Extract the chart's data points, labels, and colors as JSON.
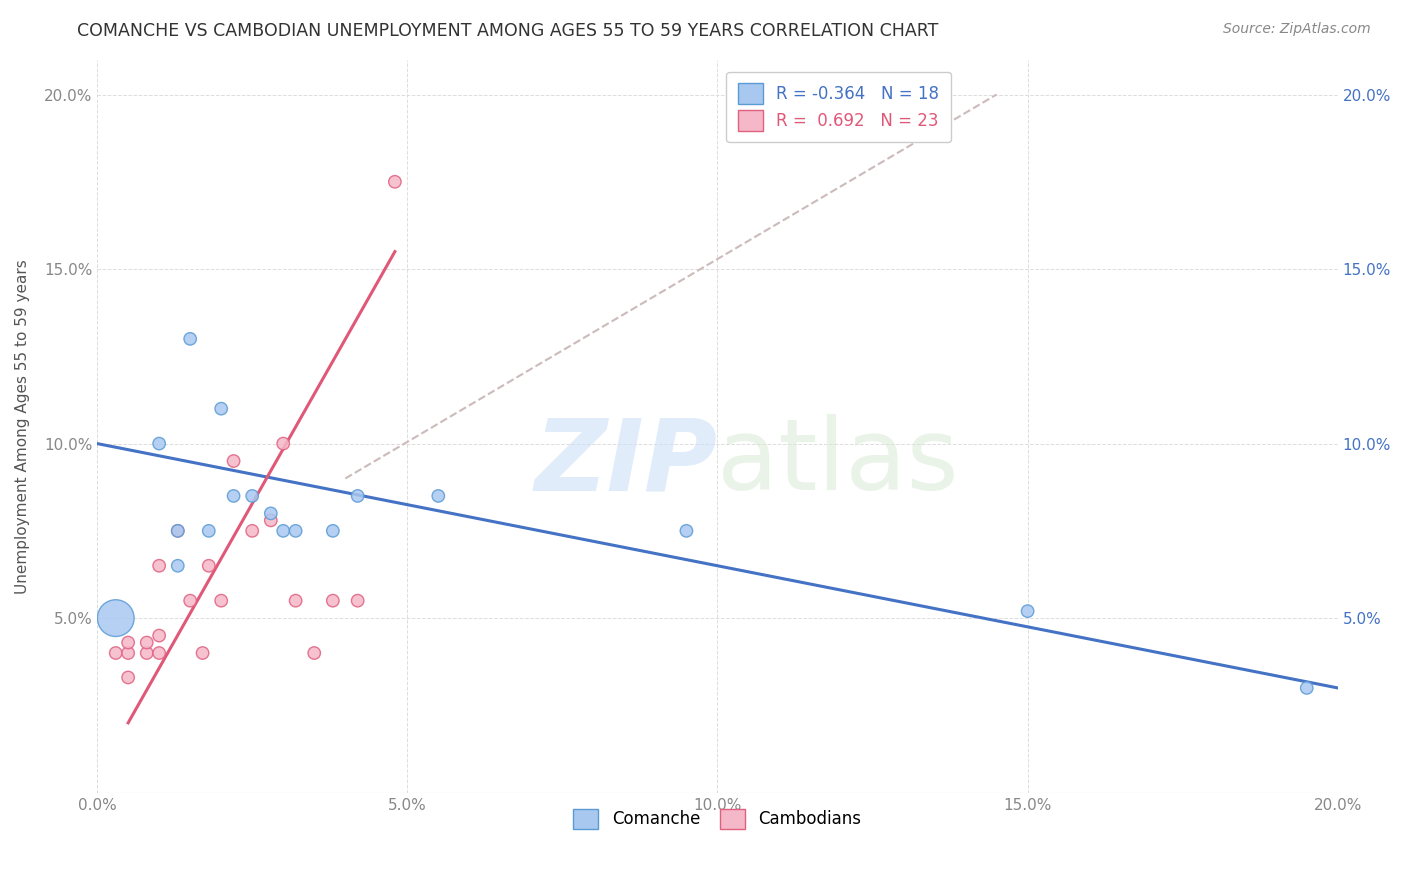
{
  "title": "COMANCHE VS CAMBODIAN UNEMPLOYMENT AMONG AGES 55 TO 59 YEARS CORRELATION CHART",
  "source": "Source: ZipAtlas.com",
  "ylabel": "Unemployment Among Ages 55 to 59 years",
  "xlim": [
    0.0,
    0.2
  ],
  "ylim": [
    0.0,
    0.21
  ],
  "xticks": [
    0.0,
    0.05,
    0.1,
    0.15,
    0.2
  ],
  "yticks": [
    0.05,
    0.1,
    0.15,
    0.2
  ],
  "xticklabels": [
    "0.0%",
    "5.0%",
    "10.0%",
    "15.0%",
    "20.0%"
  ],
  "yticklabels": [
    "5.0%",
    "10.0%",
    "15.0%",
    "20.0%"
  ],
  "watermark_zip": "ZIP",
  "watermark_atlas": "atlas",
  "comanche_color": "#a8c8f0",
  "cambodian_color": "#f5b8c8",
  "comanche_edge": "#5b9bd5",
  "cambodian_edge": "#e06080",
  "blue_line_color": "#4472c4",
  "pink_line_color": "#e05878",
  "dashed_line_color": "#ccbbbb",
  "tick_color": "#888888",
  "right_tick_color": "#4472c4",
  "legend_R_comanche": "R = -0.364",
  "legend_N_comanche": "N = 18",
  "legend_R_cambodian": "R =  0.692",
  "legend_N_cambodian": "N = 23",
  "comanche_x": [
    0.003,
    0.01,
    0.013,
    0.013,
    0.015,
    0.018,
    0.02,
    0.022,
    0.025,
    0.028,
    0.03,
    0.032,
    0.038,
    0.042,
    0.055,
    0.095,
    0.15,
    0.195
  ],
  "comanche_y": [
    0.05,
    0.1,
    0.065,
    0.075,
    0.13,
    0.075,
    0.11,
    0.085,
    0.085,
    0.08,
    0.075,
    0.075,
    0.075,
    0.085,
    0.085,
    0.075,
    0.052,
    0.03
  ],
  "comanche_size_list": [
    700,
    80,
    80,
    80,
    80,
    80,
    80,
    80,
    80,
    80,
    80,
    80,
    80,
    80,
    80,
    80,
    80,
    80
  ],
  "cambodian_x": [
    0.003,
    0.005,
    0.005,
    0.005,
    0.008,
    0.008,
    0.01,
    0.01,
    0.01,
    0.013,
    0.015,
    0.017,
    0.018,
    0.02,
    0.022,
    0.025,
    0.028,
    0.03,
    0.032,
    0.035,
    0.038,
    0.042,
    0.048
  ],
  "cambodian_y": [
    0.04,
    0.04,
    0.043,
    0.033,
    0.04,
    0.043,
    0.04,
    0.045,
    0.065,
    0.075,
    0.055,
    0.04,
    0.065,
    0.055,
    0.095,
    0.075,
    0.078,
    0.1,
    0.055,
    0.04,
    0.055,
    0.055,
    0.175
  ],
  "cambodian_size_list": [
    80,
    80,
    80,
    80,
    80,
    80,
    80,
    80,
    80,
    80,
    80,
    80,
    80,
    80,
    80,
    80,
    80,
    80,
    80,
    80,
    80,
    80,
    80
  ],
  "blue_trend_x": [
    0.0,
    0.2
  ],
  "blue_trend_y": [
    0.1,
    0.03
  ],
  "pink_trend_x": [
    0.005,
    0.048
  ],
  "pink_trend_y": [
    0.02,
    0.155
  ],
  "dashed_trend_x": [
    0.04,
    0.145
  ],
  "dashed_trend_y": [
    0.09,
    0.2
  ]
}
